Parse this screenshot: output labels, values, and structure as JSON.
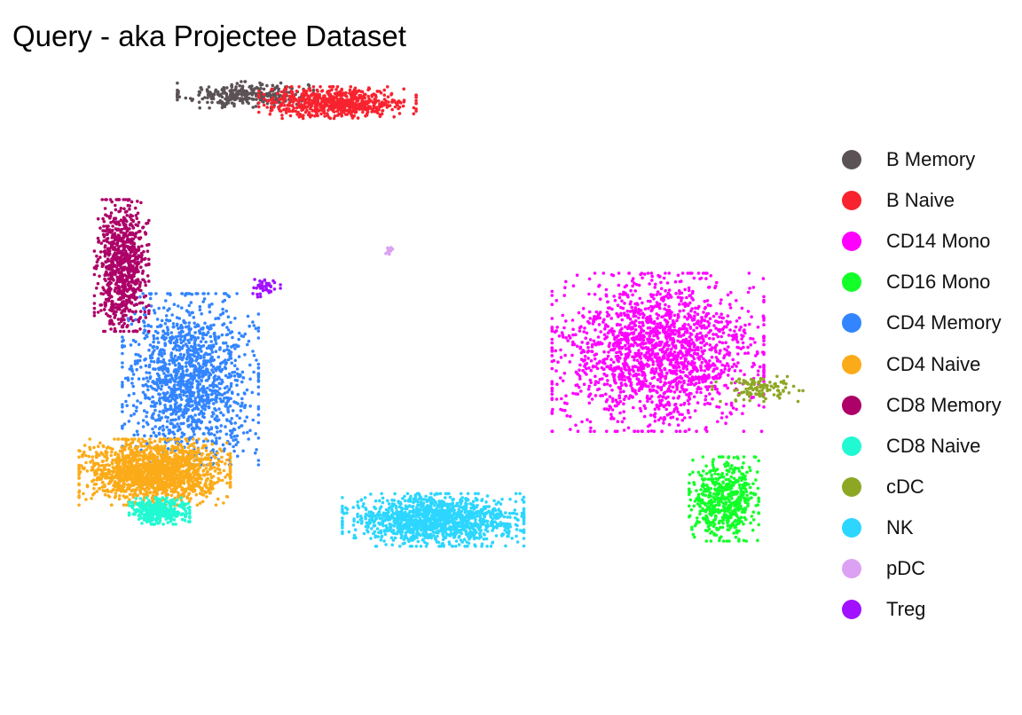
{
  "title": "Query - aka Projectee Dataset",
  "chart_data": {
    "type": "scatter",
    "title": "Query - aka Projectee Dataset",
    "xlabel": "",
    "ylabel": "",
    "grid": false,
    "axes_shown": false,
    "legend_position": "right",
    "xlim": [
      0,
      1
    ],
    "ylim": [
      0,
      1
    ],
    "series": [
      {
        "name": "B Memory",
        "color": "#5b5256",
        "clusters": [
          {
            "cx": 0.215,
            "cy": 0.975,
            "sx": 0.045,
            "sy": 0.01,
            "n": 320
          }
        ]
      },
      {
        "name": "B Naive",
        "color": "#f8232e",
        "clusters": [
          {
            "cx": 0.349,
            "cy": 0.962,
            "sx": 0.052,
            "sy": 0.012,
            "n": 650
          }
        ]
      },
      {
        "name": "CD14 Mono",
        "color": "#ff00ff",
        "clusters": [
          {
            "cx": 0.815,
            "cy": 0.545,
            "sx": 0.07,
            "sy": 0.06,
            "n": 1800
          }
        ]
      },
      {
        "name": "CD16 Mono",
        "color": "#13ff29",
        "clusters": [
          {
            "cx": 0.911,
            "cy": 0.3,
            "sx": 0.023,
            "sy": 0.032,
            "n": 550
          }
        ]
      },
      {
        "name": "CD4 Memory",
        "color": "#3385ff",
        "clusters": [
          {
            "cx": 0.135,
            "cy": 0.5,
            "sx": 0.045,
            "sy": 0.065,
            "n": 1400
          }
        ]
      },
      {
        "name": "CD4 Naive",
        "color": "#fbab19",
        "clusters": [
          {
            "cx": 0.083,
            "cy": 0.345,
            "sx": 0.05,
            "sy": 0.025,
            "n": 1600
          }
        ]
      },
      {
        "name": "CD8 Memory",
        "color": "#ad0068",
        "clusters": [
          {
            "cx": 0.035,
            "cy": 0.69,
            "sx": 0.018,
            "sy": 0.05,
            "n": 800
          }
        ]
      },
      {
        "name": "CD8 Naive",
        "color": "#21f9d2",
        "clusters": [
          {
            "cx": 0.09,
            "cy": 0.28,
            "sx": 0.02,
            "sy": 0.01,
            "n": 350
          }
        ]
      },
      {
        "name": "cDC",
        "color": "#8da725",
        "clusters": [
          {
            "cx": 0.96,
            "cy": 0.485,
            "sx": 0.03,
            "sy": 0.01,
            "n": 110
          }
        ]
      },
      {
        "name": "NK",
        "color": "#2cd6ff",
        "clusters": [
          {
            "cx": 0.488,
            "cy": 0.265,
            "sx": 0.06,
            "sy": 0.02,
            "n": 1300
          }
        ]
      },
      {
        "name": "pDC",
        "color": "#dca1f2",
        "clusters": [
          {
            "cx": 0.423,
            "cy": 0.713,
            "sx": 0.003,
            "sy": 0.004,
            "n": 15
          }
        ]
      },
      {
        "name": "Treg",
        "color": "#a111ff",
        "clusters": [
          {
            "cx": 0.244,
            "cy": 0.655,
            "sx": 0.01,
            "sy": 0.008,
            "n": 40
          }
        ]
      }
    ],
    "legend": [
      "B Memory",
      "B Naive",
      "CD14 Mono",
      "CD16 Mono",
      "CD4 Memory",
      "CD4 Naive",
      "CD8 Memory",
      "CD8 Naive",
      "cDC",
      "NK",
      "pDC",
      "Treg"
    ]
  }
}
